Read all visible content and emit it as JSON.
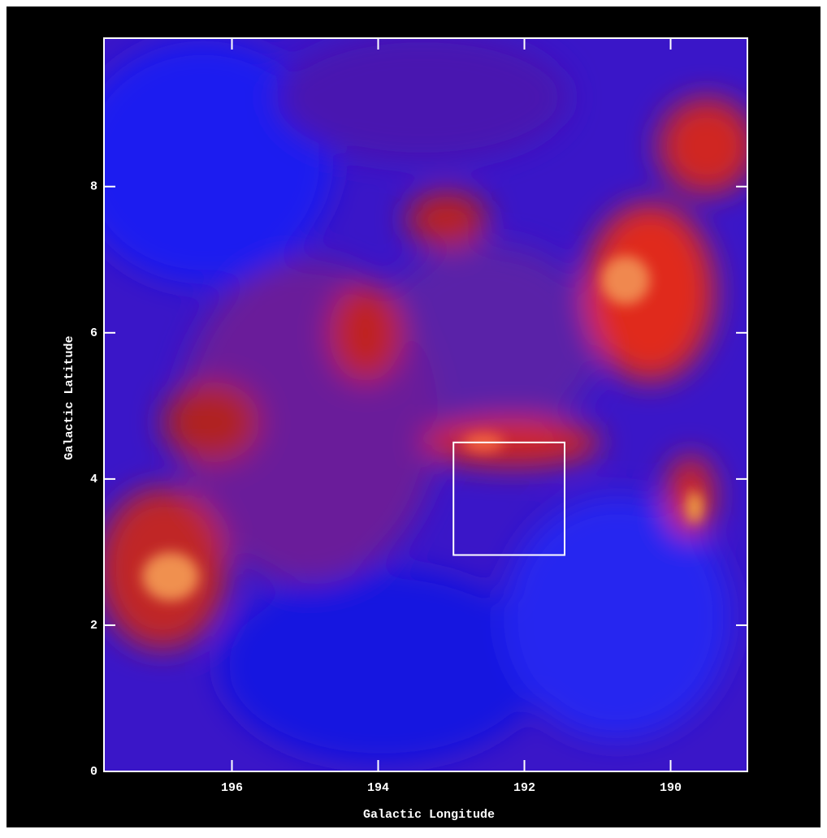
{
  "chart_data": {
    "type": "image",
    "xlabel": "Galactic Longitude",
    "ylabel": "Galactic Latitude",
    "xlim": [
      197.75,
      188.95
    ],
    "ylim": [
      0,
      10.03
    ],
    "xticks": [
      196,
      194,
      192,
      190
    ],
    "yticks": [
      0,
      2,
      4,
      6,
      8
    ],
    "box": {
      "x": [
        192.97,
        191.45
      ],
      "y": [
        2.96,
        4.5
      ]
    },
    "frame_color": "#ffffff"
  }
}
